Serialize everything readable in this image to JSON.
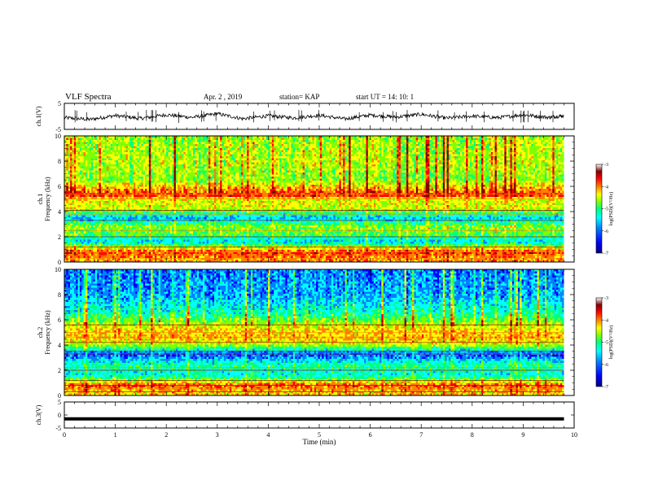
{
  "header": {
    "title": "VLF Spectra",
    "date": "Apr. 2 , 2019",
    "station": "station= KAP",
    "start": "start  UT =   14: 10: 1"
  },
  "colors": {
    "colormap": [
      "#000080",
      "#0000ff",
      "#0080ff",
      "#00ffff",
      "#00ff80",
      "#80ff00",
      "#ffff00",
      "#ff8000",
      "#ff0000",
      "#800000",
      "#ffffff"
    ],
    "trace": "#000000"
  },
  "chart_data": [
    {
      "type": "line",
      "panel": "ch1-waveform",
      "ylabel": "ch.1(V)",
      "ylim": [
        -5,
        5
      ],
      "yticks": [
        "5",
        "-5"
      ],
      "x_range_min": [
        0,
        10
      ],
      "note_series": "noisy waveform centered near 0 V, amplitude roughly ±1.5 V",
      "series": [
        {
          "x": [
            0,
            0.5,
            1,
            1.5,
            2,
            2.5,
            3,
            3.5,
            4,
            4.5,
            5,
            5.5,
            6,
            6.5,
            7,
            7.5,
            8,
            8.5,
            9,
            9.5,
            9.8
          ],
          "values": [
            -0.5,
            -1.2,
            0.3,
            -0.8,
            0.6,
            -0.4,
            1.0,
            -0.9,
            0.2,
            -0.6,
            0.4,
            -1.0,
            0.5,
            -0.3,
            0.8,
            -0.7,
            0.1,
            -0.5,
            0.6,
            -0.4,
            0.3
          ]
        }
      ]
    },
    {
      "type": "heatmap",
      "panel": "ch1-spectrogram",
      "ylabel": "ch.1\nFrequency (kHz)",
      "ylim": [
        0,
        10
      ],
      "yticks": [
        "0",
        "2",
        "4",
        "6",
        "8",
        "10"
      ],
      "colorbar": {
        "label": "log(PSD)(V²/Hz)",
        "range": [
          -7,
          -3
        ],
        "ticks": [
          "-3",
          "-4",
          "-5",
          "-6",
          "-7"
        ]
      },
      "band_profile_log_psd": [
        {
          "f_khz": 0.25,
          "level": -4.0
        },
        {
          "f_khz": 0.8,
          "level": -3.6
        },
        {
          "f_khz": 1.6,
          "level": -5.8
        },
        {
          "f_khz": 2.2,
          "level": -5.0
        },
        {
          "f_khz": 2.8,
          "level": -4.8
        },
        {
          "f_khz": 3.5,
          "level": -5.9
        },
        {
          "f_khz": 4.3,
          "level": -4.5
        },
        {
          "f_khz": 5.0,
          "level": -4.4
        },
        {
          "f_khz": 5.3,
          "level": -3.5
        },
        {
          "f_khz": 6.5,
          "level": -4.8
        },
        {
          "f_khz": 8.0,
          "level": -4.6
        },
        {
          "f_khz": 9.5,
          "level": -4.7
        }
      ]
    },
    {
      "type": "heatmap",
      "panel": "ch2-spectrogram",
      "ylabel": "ch.2\nFrequency (kHz)",
      "ylim": [
        0,
        10
      ],
      "yticks": [
        "0",
        "2",
        "4",
        "6",
        "8",
        "10"
      ],
      "colorbar": {
        "label": "log(PSD)(V²/Hz)",
        "range": [
          -7,
          -3
        ],
        "ticks": [
          "-3",
          "-4",
          "-5",
          "-6",
          "-7"
        ]
      },
      "band_profile_log_psd": [
        {
          "f_khz": 0.25,
          "level": -4.2
        },
        {
          "f_khz": 0.8,
          "level": -3.7
        },
        {
          "f_khz": 1.6,
          "level": -5.6
        },
        {
          "f_khz": 2.4,
          "level": -5.3
        },
        {
          "f_khz": 3.3,
          "level": -6.4
        },
        {
          "f_khz": 4.0,
          "level": -4.6
        },
        {
          "f_khz": 4.6,
          "level": -4.1
        },
        {
          "f_khz": 5.3,
          "level": -4.3
        },
        {
          "f_khz": 6.5,
          "level": -5.4
        },
        {
          "f_khz": 8.0,
          "level": -6.0
        },
        {
          "f_khz": 9.5,
          "level": -6.1
        }
      ]
    },
    {
      "type": "line",
      "panel": "ch3-waveform",
      "ylabel": "ch.3(V)",
      "ylim": [
        -5,
        5
      ],
      "yticks": [
        "5",
        "0",
        "-5"
      ],
      "series": [
        {
          "x": [
            0,
            9.8
          ],
          "values": [
            -1.5,
            -1.5
          ]
        }
      ]
    }
  ],
  "xaxis": {
    "label": "Time (min)",
    "range": [
      0,
      10
    ],
    "ticks": [
      "0",
      "1",
      "2",
      "3",
      "4",
      "5",
      "6",
      "7",
      "8",
      "9",
      "10"
    ]
  }
}
